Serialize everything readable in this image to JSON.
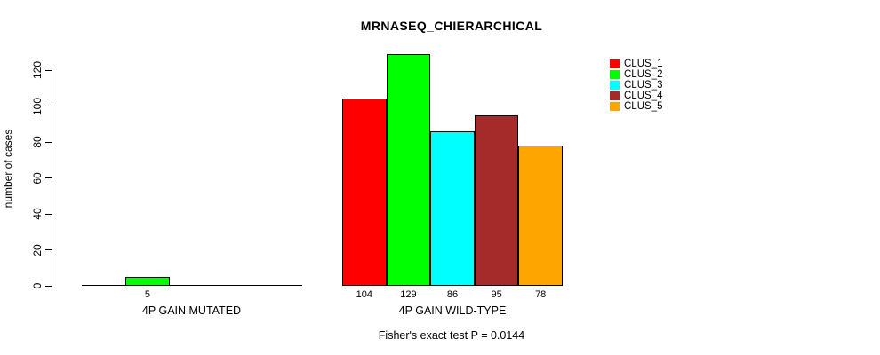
{
  "chart_data": {
    "type": "bar",
    "title": "MRNASEQ_CHIERARCHICAL",
    "xlabel": "",
    "ylabel": "number of cases",
    "categories": [
      "4P GAIN MUTATED",
      "4P GAIN WILD-TYPE"
    ],
    "series": [
      {
        "name": "CLUS_1",
        "color": "#FF0000",
        "values": [
          0,
          104
        ]
      },
      {
        "name": "CLUS_2",
        "color": "#00FF00",
        "values": [
          5,
          129
        ]
      },
      {
        "name": "CLUS_3",
        "color": "#00FFFF",
        "values": [
          0,
          86
        ]
      },
      {
        "name": "CLUS_4",
        "color": "#A52A2A",
        "values": [
          0,
          95
        ]
      },
      {
        "name": "CLUS_5",
        "color": "#FFA500",
        "values": [
          0,
          78
        ]
      }
    ],
    "yticks": [
      0,
      20,
      40,
      60,
      80,
      100,
      120
    ],
    "ylim": [
      0,
      129
    ],
    "grid": false,
    "legend_position": "top-right",
    "value_labels_shown_when_positive": true,
    "annotation": "Fisher's exact test P = 0.0144"
  },
  "colors": {
    "background": "#FFFFFF",
    "axis": "#000000",
    "text": "#000000"
  }
}
